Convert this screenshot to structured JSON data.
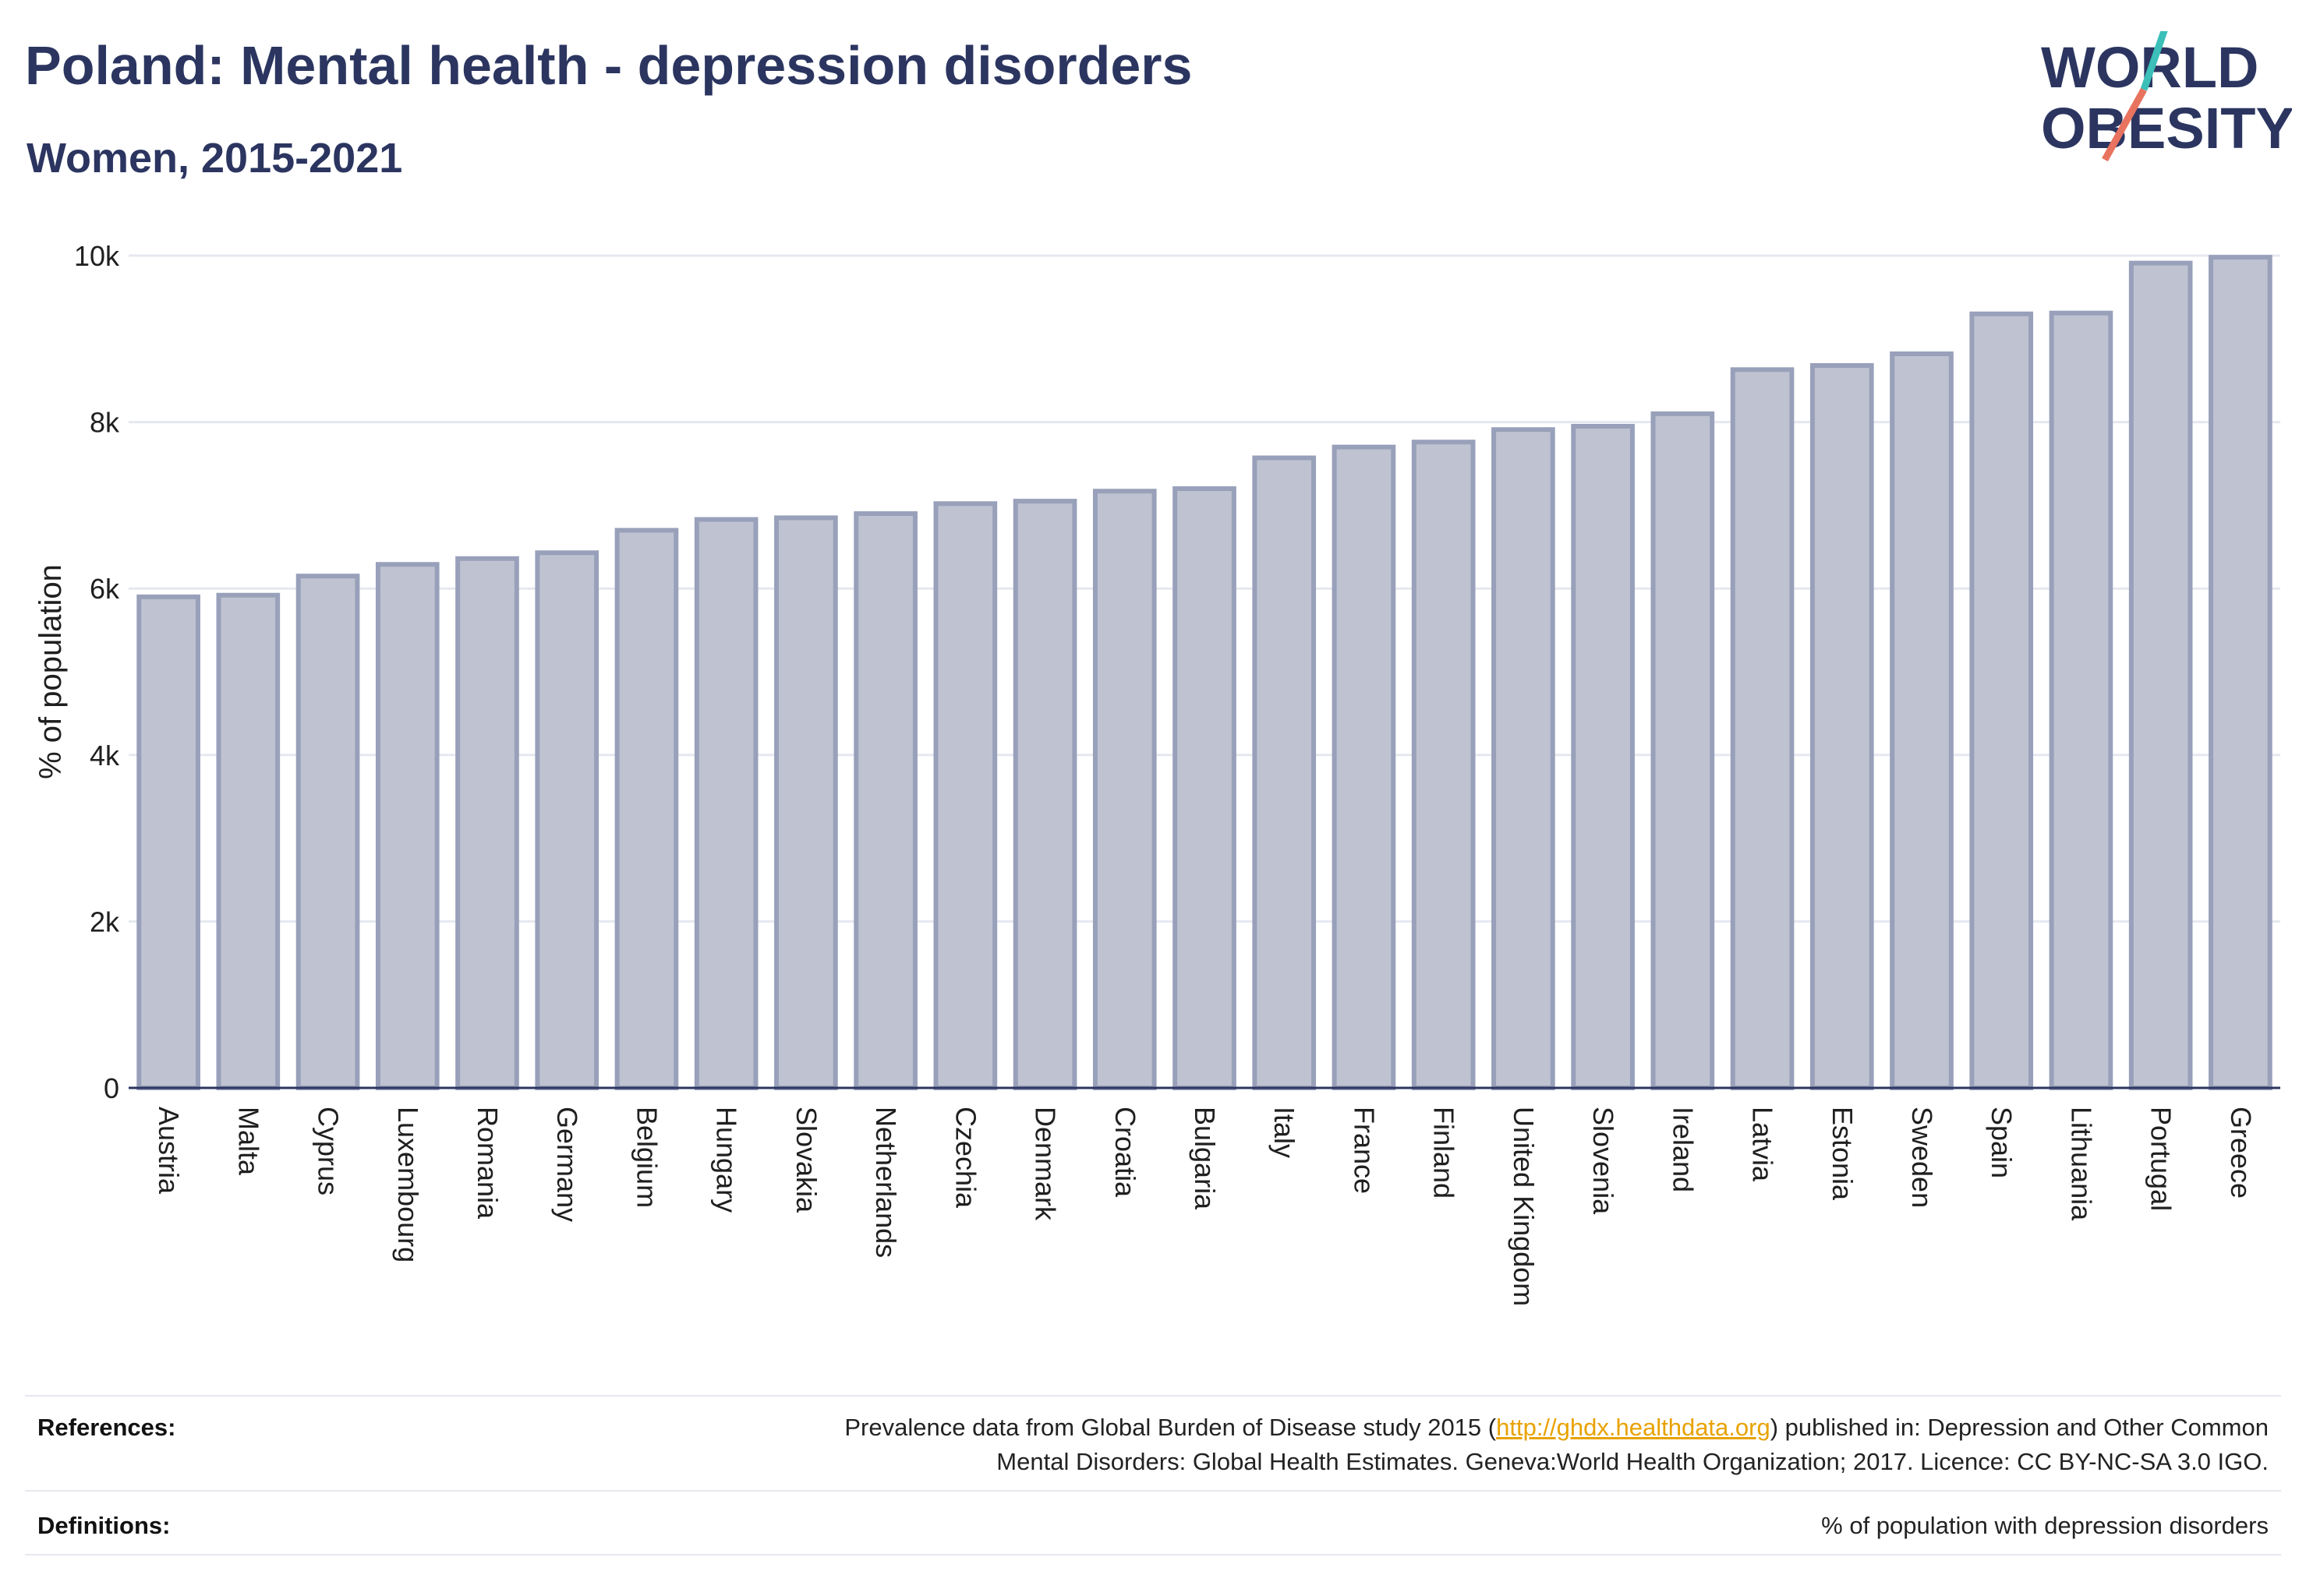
{
  "header": {
    "title": "Poland: Mental health - depression disorders",
    "subtitle": "Women, 2015-2021"
  },
  "logo": {
    "line1": "WORLD",
    "line2": "OBESITY",
    "text_color": "#2b3560",
    "slash_teal": "#3bbfb8",
    "slash_coral": "#e8735f"
  },
  "chart_data": {
    "type": "bar",
    "ylabel": "% of population",
    "xlabel": "",
    "ylim": [
      0,
      10000
    ],
    "yticks": [
      0,
      2000,
      4000,
      6000,
      8000,
      10000
    ],
    "ytick_labels": [
      "0",
      "2k",
      "4k",
      "6k",
      "8k",
      "10k"
    ],
    "grid": true,
    "bar_fill": "#bfc3d1",
    "bar_stroke": "#98a0ba",
    "categories": [
      "Austria",
      "Malta",
      "Cyprus",
      "Luxembourg",
      "Romania",
      "Germany",
      "Belgium",
      "Hungary",
      "Slovakia",
      "Netherlands",
      "Czechia",
      "Denmark",
      "Croatia",
      "Bulgaria",
      "Italy",
      "France",
      "Finland",
      "United Kingdom",
      "Slovenia",
      "Ireland",
      "Latvia",
      "Estonia",
      "Sweden",
      "Spain",
      "Lithuania",
      "Portugal",
      "Greece"
    ],
    "values": [
      5900,
      5920,
      6150,
      6290,
      6360,
      6430,
      6700,
      6830,
      6850,
      6900,
      7020,
      7050,
      7170,
      7200,
      7570,
      7700,
      7760,
      7910,
      7950,
      8100,
      8630,
      8680,
      8820,
      9300,
      9310,
      9910,
      9980
    ]
  },
  "footer": {
    "references_label": "References:",
    "references_line1_before": "Prevalence data from Global Burden of Disease study 2015 (",
    "references_link": "http://ghdx.healthdata.org",
    "references_line1_after": ") published in: Depression and Other Common",
    "references_line2": "Mental Disorders: Global Health Estimates. Geneva:World Health Organization; 2017. Licence: CC BY-NC-SA 3.0 IGO.",
    "definitions_label": "Definitions:",
    "definitions_text": "% of population with depression disorders"
  }
}
